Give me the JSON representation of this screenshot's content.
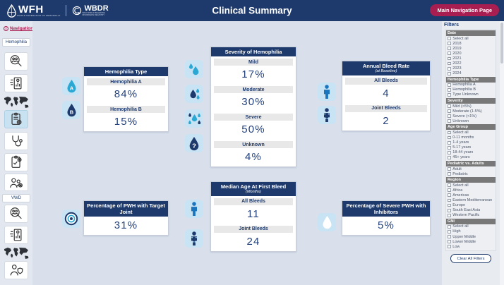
{
  "header": {
    "title": "Clinical Summary",
    "wfh_logo": {
      "name": "WFH",
      "tagline": "WORLD FEDERATION OF HEMOPHILIA"
    },
    "wbdr_logo": {
      "name": "WBDR",
      "tagline_line1": "WFH WORLD BLEEDING",
      "tagline_line2": "DISORDERS REGISTRY"
    },
    "nav_button_label": "Main Navigation Page"
  },
  "sidebar": {
    "navigation_link": "Navigation",
    "info_icon": "i",
    "hemophilia_section_label": "Hemophilia",
    "vwd_section_label": "VWD",
    "hemophilia_icons": [
      "search-demographics-icon",
      "report-chart-icon",
      "world-map-icon",
      "clinical-clipboard-icon",
      "stethoscope-icon",
      "treatment-clipboard-icon",
      "patients-gear-icon"
    ],
    "vwd_icons": [
      "search-demographics-icon",
      "report-chart-icon",
      "world-map-icon",
      "person-shield-icon"
    ],
    "selected_icon": "clinical-clipboard-icon"
  },
  "cards": {
    "hemophilia_type": {
      "title": "Hemophilia Type",
      "metrics": [
        {
          "label": "Hemophilia A",
          "value": "84%"
        },
        {
          "label": "Hemophilia B",
          "value": "15%"
        }
      ],
      "icon_letter_a": "A",
      "icon_letter_b": "B"
    },
    "severity": {
      "title": "Severity of Hemophilia",
      "metrics": [
        {
          "label": "Mild",
          "value": "17%"
        },
        {
          "label": "Moderate",
          "value": "30%"
        },
        {
          "label": "Severe",
          "value": "50%"
        },
        {
          "label": "Unknown",
          "value": "4%"
        }
      ],
      "unknown_mark": "?"
    },
    "annual_bleed_rate": {
      "title": "Annual Bleed Rate",
      "subtitle": "(at Baseline)",
      "metrics": [
        {
          "label": "All Bleeds",
          "value": "4"
        },
        {
          "label": "Joint Bleeds",
          "value": "2"
        }
      ]
    },
    "target_joint": {
      "title": "Percentage of PWH with Target Joint",
      "value": "31%"
    },
    "median_age": {
      "title": "Median Age At First Bleed",
      "subtitle": "(Months)",
      "metrics": [
        {
          "label": "All Bleeds",
          "value": "11"
        },
        {
          "label": "Joint Bleeds",
          "value": "24"
        }
      ]
    },
    "inhibitors": {
      "title": "Percentage of Severe PWH with Inhibitors",
      "value": "5%"
    }
  },
  "filters": {
    "title": "Filters",
    "clear_button_label": "Clear All Filters",
    "sections": [
      {
        "name": "Date",
        "options": [
          "Select all",
          "2018",
          "2019",
          "2020",
          "2021",
          "2022",
          "2023",
          "2024"
        ]
      },
      {
        "name": "Hemophilia Type",
        "options": [
          "Hemophilia A",
          "Hemophilia B",
          "Type Unknown"
        ]
      },
      {
        "name": "Severity",
        "options": [
          "Mild (>5%)",
          "Moderate (1-5%)",
          "Severe (<1%)",
          "Unknown"
        ]
      },
      {
        "name": "Age Group",
        "options": [
          "Select all",
          "0-11 months",
          "1-4 years",
          "5-17 years",
          "18-44 years",
          "45+ years"
        ]
      },
      {
        "name": "Pediatric vs. Adults",
        "options": [
          "Adult",
          "Pediatric"
        ]
      },
      {
        "name": "Region",
        "options": [
          "Select all",
          "Africa",
          "Americas",
          "Eastern Mediterranean",
          "Europe",
          "South East Asia",
          "Western Pacific"
        ]
      },
      {
        "name": "GNI",
        "options": [
          "Select all",
          "High",
          "Upper Middle",
          "Lower Middle",
          "Low"
        ]
      }
    ]
  },
  "colors": {
    "navy": "#1E3A6C",
    "crimson": "#A91E50",
    "cyan": "#2BA7D4",
    "icon_tile_blue": "#C8E3F3",
    "person_blue": "#1B75BC",
    "main_background": "#D9E0EB"
  }
}
